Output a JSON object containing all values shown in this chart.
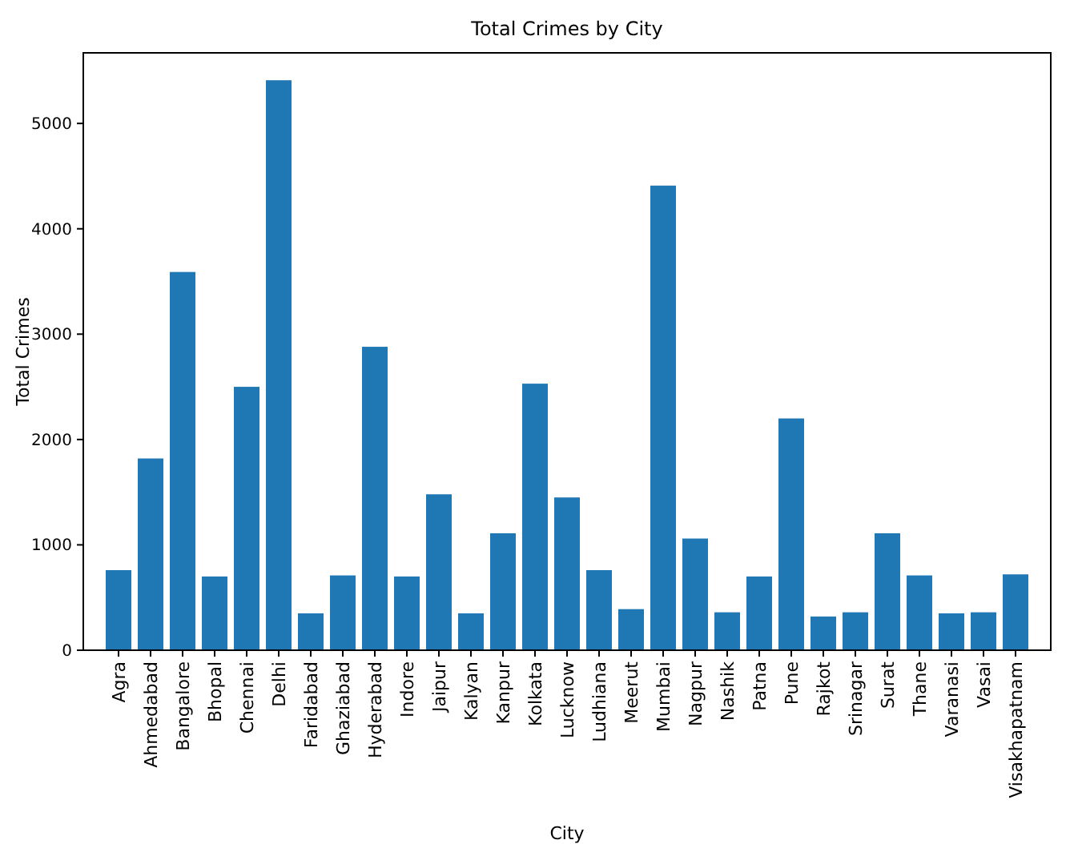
{
  "chart_data": {
    "type": "bar",
    "title": "Total Crimes by City",
    "xlabel": "City",
    "ylabel": "Total Crimes",
    "categories": [
      "Agra",
      "Ahmedabad",
      "Bangalore",
      "Bhopal",
      "Chennai",
      "Delhi",
      "Faridabad",
      "Ghaziabad",
      "Hyderabad",
      "Indore",
      "Jaipur",
      "Kalyan",
      "Kanpur",
      "Kolkata",
      "Lucknow",
      "Ludhiana",
      "Meerut",
      "Mumbai",
      "Nagpur",
      "Nashik",
      "Patna",
      "Pune",
      "Rajkot",
      "Srinagar",
      "Surat",
      "Thane",
      "Varanasi",
      "Vasai",
      "Visakhapatnam"
    ],
    "values": [
      760,
      1820,
      3590,
      700,
      2500,
      5410,
      350,
      710,
      2880,
      700,
      1480,
      350,
      1110,
      2530,
      1450,
      760,
      390,
      4410,
      1060,
      360,
      700,
      2200,
      320,
      360,
      1110,
      710,
      350,
      360,
      720
    ],
    "color": "#1f77b4",
    "ylim": [
      0,
      5670
    ],
    "yticks": [
      0,
      1000,
      2000,
      3000,
      4000,
      5000
    ],
    "grid": false
  }
}
